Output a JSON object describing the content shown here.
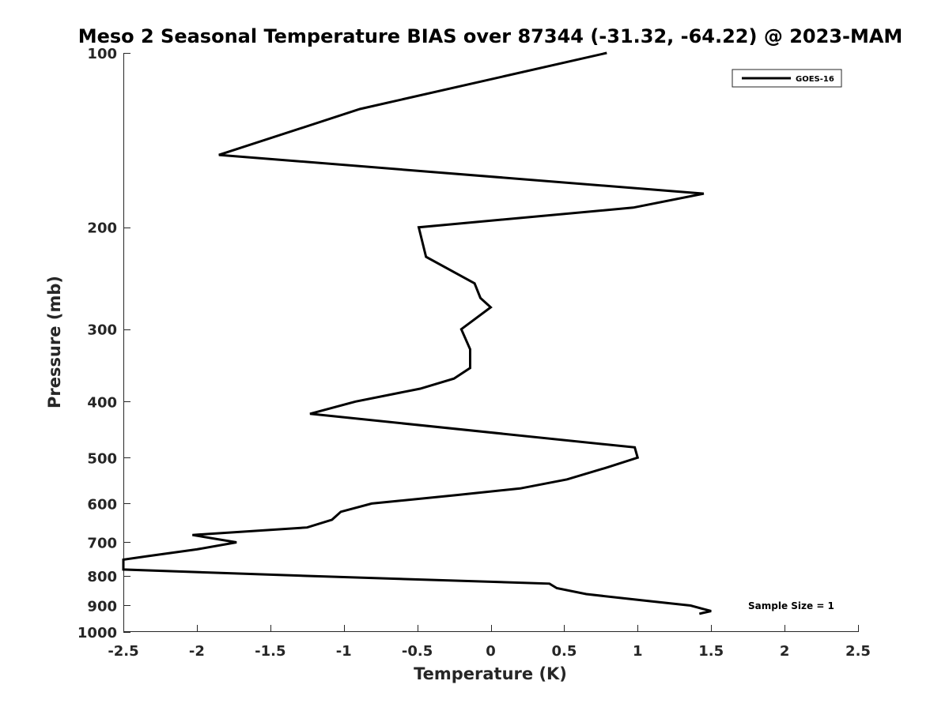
{
  "chart_data": {
    "type": "line",
    "title": "Meso 2 Seasonal Temperature BIAS over 87344 (-31.32, -64.22) @ 2023-MAM",
    "xlabel": "Temperature (K)",
    "ylabel": "Pressure (mb)",
    "xlim": [
      -2.5,
      2.5
    ],
    "ylim": [
      100,
      1000
    ],
    "y_scale": "log",
    "y_reversed": true,
    "grid": false,
    "x_ticks": [
      -2.5,
      -2,
      -1.5,
      -1,
      -0.5,
      0,
      0.5,
      1,
      1.5,
      2,
      2.5
    ],
    "x_tick_labels": [
      "-2.5",
      "-2",
      "-1.5",
      "-1",
      "-0.5",
      "0",
      "0.5",
      "1",
      "1.5",
      "2",
      "2.5"
    ],
    "y_ticks": [
      100,
      200,
      300,
      400,
      500,
      600,
      700,
      800,
      900,
      1000
    ],
    "y_tick_labels": [
      "100",
      "200",
      "300",
      "400",
      "500",
      "600",
      "700",
      "800",
      "900",
      "1000"
    ],
    "legend": {
      "position": "top-right",
      "entries": [
        "GOES-16"
      ]
    },
    "annotations": [
      "Sample Size = 1"
    ],
    "series": [
      {
        "name": "GOES-16",
        "color": "#000000",
        "points": [
          [
            0.79,
            100
          ],
          [
            -0.89,
            125
          ],
          [
            -1.85,
            150
          ],
          [
            1.45,
            175
          ],
          [
            0.97,
            185
          ],
          [
            -0.49,
            200
          ],
          [
            -0.44,
            225
          ],
          [
            -0.11,
            250
          ],
          [
            -0.07,
            265
          ],
          [
            0.0,
            275
          ],
          [
            -0.2,
            300
          ],
          [
            -0.14,
            325
          ],
          [
            -0.14,
            350
          ],
          [
            -0.25,
            365
          ],
          [
            -0.48,
            380
          ],
          [
            -0.92,
            400
          ],
          [
            -1.23,
            420
          ],
          [
            0.98,
            480
          ],
          [
            1.0,
            500
          ],
          [
            0.79,
            520
          ],
          [
            0.52,
            545
          ],
          [
            0.2,
            565
          ],
          [
            -0.23,
            580
          ],
          [
            -0.81,
            600
          ],
          [
            -1.02,
            620
          ],
          [
            -1.08,
            640
          ],
          [
            -1.25,
            660
          ],
          [
            -2.03,
            680
          ],
          [
            -1.73,
            700
          ],
          [
            -2.0,
            720
          ],
          [
            -2.34,
            740
          ],
          [
            -2.5,
            750
          ],
          [
            -2.5,
            780
          ],
          [
            -1.25,
            800
          ],
          [
            0.4,
            825
          ],
          [
            0.45,
            840
          ],
          [
            0.65,
            860
          ],
          [
            1.0,
            880
          ],
          [
            1.36,
            900
          ],
          [
            1.5,
            920
          ],
          [
            1.42,
            930
          ]
        ]
      }
    ]
  }
}
